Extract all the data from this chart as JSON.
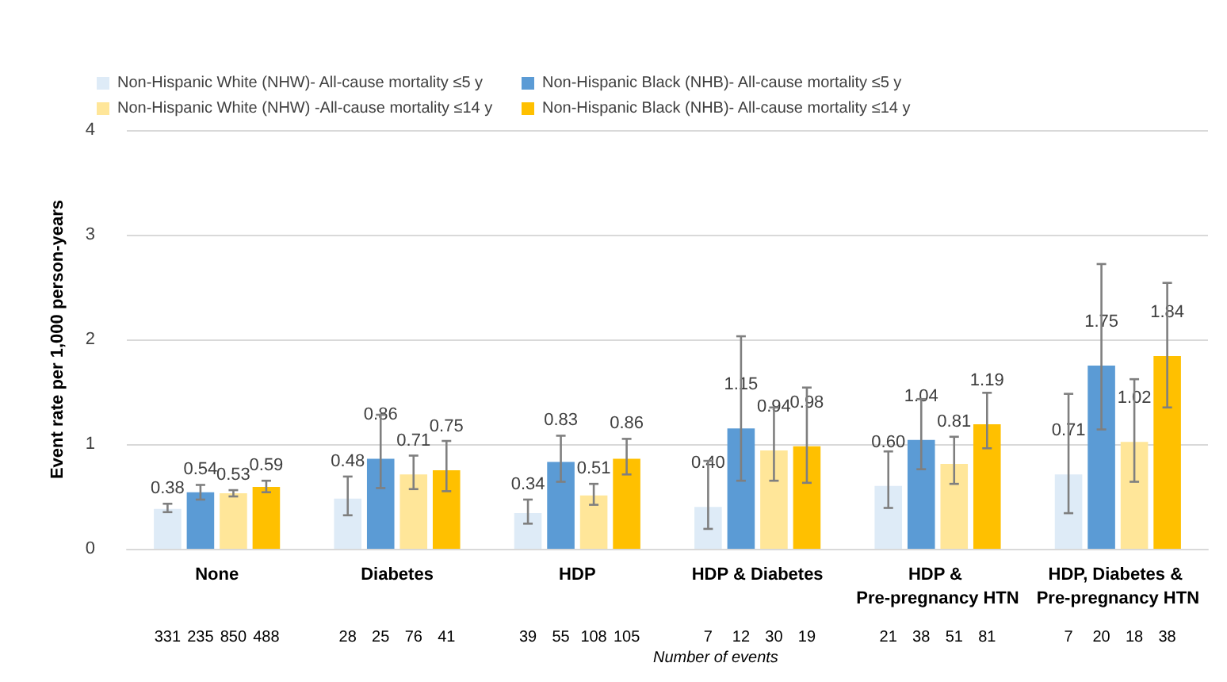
{
  "chart_data": {
    "type": "bar",
    "ylabel": "Event rate per 1,000 person-years",
    "categories": [
      "None",
      "Diabetes",
      "HDP",
      "HDP & Diabetes",
      "HDP & Pre-pregnancy HTN",
      "HDP, Diabetes & Pre-pregnancy HTN"
    ],
    "series": [
      {
        "name": "Non-Hispanic White (NHW)- All-cause mortality ≤5 y",
        "color": "#deebf7",
        "values": [
          0.38,
          0.48,
          0.34,
          0.4,
          0.6,
          0.71
        ],
        "value_labels": [
          "0.38",
          "0.48",
          "0.34",
          "0.40",
          "0.60",
          "0.71"
        ],
        "errors": [
          [
            0.35,
            0.43
          ],
          [
            0.32,
            0.69
          ],
          [
            0.24,
            0.47
          ],
          [
            0.19,
            0.84
          ],
          [
            0.39,
            0.93
          ],
          [
            0.34,
            1.48
          ]
        ]
      },
      {
        "name": "Non-Hispanic Black (NHB)- All-cause mortality ≤5 y",
        "color": "#5b9bd5",
        "values": [
          0.54,
          0.86,
          0.83,
          1.15,
          1.04,
          1.75
        ],
        "value_labels": [
          "0.54",
          "0.86",
          "0.83",
          "1.15",
          "1.04",
          "1.75"
        ],
        "errors": [
          [
            0.47,
            0.61
          ],
          [
            0.58,
            1.28
          ],
          [
            0.64,
            1.08
          ],
          [
            0.65,
            2.03
          ],
          [
            0.76,
            1.43
          ],
          [
            1.14,
            2.72
          ]
        ]
      },
      {
        "name": "Non-Hispanic White (NHW) -All-cause mortality ≤14 y",
        "color": "#ffe699",
        "values": [
          0.53,
          0.71,
          0.51,
          0.94,
          0.81,
          1.02
        ],
        "value_labels": [
          "0.53",
          "0.71",
          "0.51",
          "0.94",
          "0.81",
          "1.02"
        ],
        "errors": [
          [
            0.5,
            0.56
          ],
          [
            0.57,
            0.89
          ],
          [
            0.42,
            0.62
          ],
          [
            0.65,
            1.35
          ],
          [
            0.62,
            1.07
          ],
          [
            0.64,
            1.62
          ]
        ]
      },
      {
        "name": "Non-Hispanic Black (NHB)- All-cause mortality ≤14 y",
        "color": "#ffc000",
        "values": [
          0.59,
          0.75,
          0.86,
          0.98,
          1.19,
          1.84
        ],
        "value_labels": [
          "0.59",
          "0.75",
          "0.86",
          "0.98",
          "1.19",
          "1.84"
        ],
        "errors": [
          [
            0.54,
            0.65
          ],
          [
            0.55,
            1.03
          ],
          [
            0.71,
            1.05
          ],
          [
            0.63,
            1.54
          ],
          [
            0.96,
            1.49
          ],
          [
            1.35,
            2.54
          ]
        ]
      }
    ],
    "ylim": [
      0,
      4
    ],
    "yticks": [
      0,
      1,
      2,
      3,
      4
    ],
    "grid": "y",
    "legend": "top left",
    "annotations": [
      "331 235 850 488",
      "28 25 76 41",
      "39 55 108 105",
      "7 12 30 19",
      "21 38 51 81",
      "7 20 18 38",
      "Number of events"
    ]
  }
}
